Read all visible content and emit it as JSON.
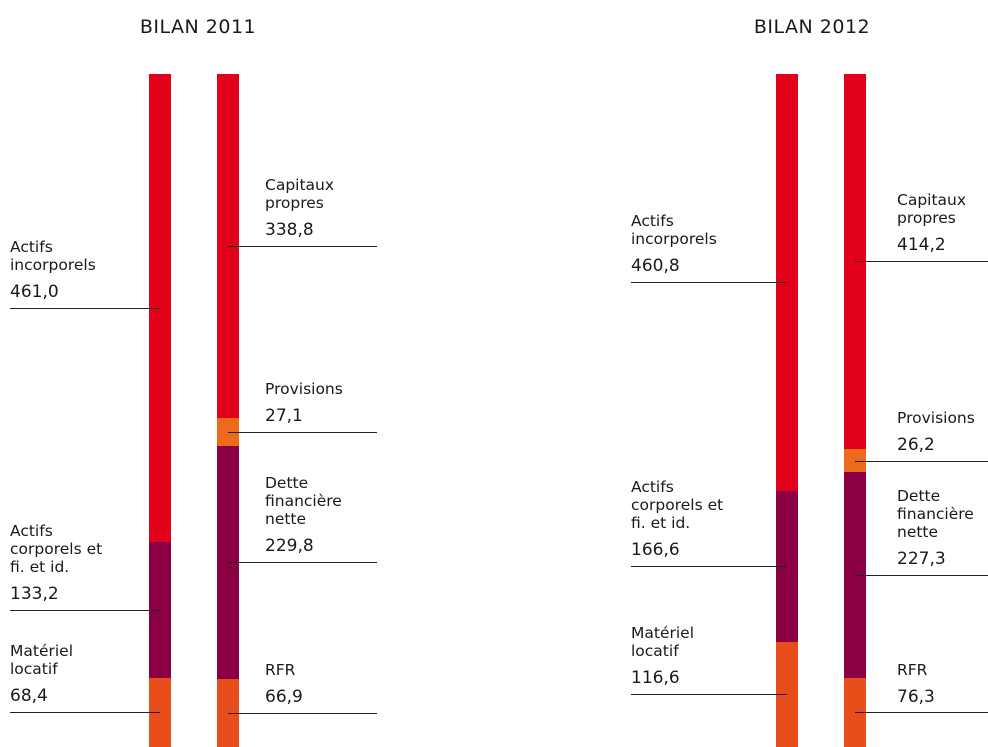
{
  "chart_data": [
    {
      "type": "balance",
      "title": "BILAN 2011",
      "columns": [
        {
          "names": [
            "Actifs incorporels",
            "Actifs corporels et fi. et id.",
            "Matériel locatif"
          ],
          "values": [
            461.0,
            133.2,
            68.4
          ],
          "value_labels": [
            "461,0",
            "133,2",
            "68,4"
          ],
          "colors": [
            "#e2001a",
            "#8b0045",
            "#e84e1b"
          ]
        },
        {
          "names": [
            "Capitaux propres",
            "Provisions",
            "Dette financière nette",
            "RFR"
          ],
          "values": [
            338.8,
            27.1,
            229.8,
            66.9
          ],
          "value_labels": [
            "338,8",
            "27,1",
            "229,8",
            "66,9"
          ],
          "colors": [
            "#e2001a",
            "#ec6a1c",
            "#8b0045",
            "#e84e1b"
          ]
        }
      ]
    },
    {
      "type": "balance",
      "title": "BILAN 2012",
      "columns": [
        {
          "names": [
            "Actifs incorporels",
            "Actifs corporels et fi. et id.",
            "Matériel locatif"
          ],
          "values": [
            460.8,
            166.6,
            116.6
          ],
          "value_labels": [
            "460,8",
            "166,6",
            "116,6"
          ],
          "colors": [
            "#e2001a",
            "#8b0045",
            "#e84e1b"
          ]
        },
        {
          "names": [
            "Capitaux propres",
            "Provisions",
            "Dette financière nette",
            "RFR"
          ],
          "values": [
            414.2,
            26.2,
            227.3,
            76.3
          ],
          "value_labels": [
            "414,2",
            "26,2",
            "227,3",
            "76,3"
          ],
          "colors": [
            "#e2001a",
            "#ec6a1c",
            "#8b0045",
            "#e84e1b"
          ]
        }
      ]
    }
  ]
}
